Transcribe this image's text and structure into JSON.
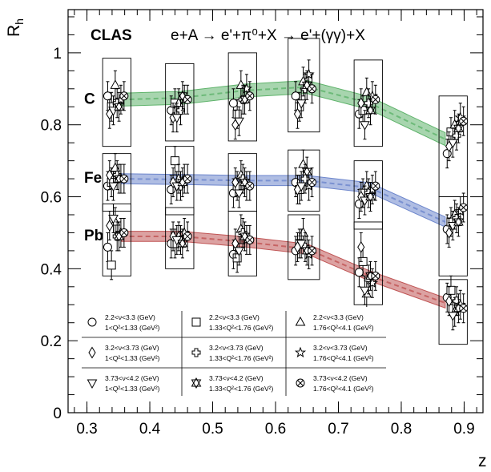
{
  "chart_data": {
    "type": "scatter",
    "title_lead": "CLAS",
    "reaction": "e+A → e'+π⁰+X → e'+(γγ)+X",
    "xlabel": "z",
    "ylabel": "R",
    "ylabel_sub": "h",
    "xlim": [
      0.27,
      0.93
    ],
    "ylim": [
      0.0,
      1.12
    ],
    "xticks": [
      0.3,
      0.4,
      0.5,
      0.6,
      0.7,
      0.8,
      0.9
    ],
    "xtick_labels": [
      "0.3",
      "0.4",
      "0.5",
      "0.6",
      "0.7",
      "0.8",
      "0.9"
    ],
    "yticks": [
      0.2,
      0.4,
      0.6,
      0.8,
      1.0
    ],
    "ytick_labels": [
      "0.2",
      "0.4",
      "0.6",
      "0.8",
      "1"
    ],
    "ytick_zero_label": "0",
    "grid": false,
    "z_bins": [
      {
        "x": 0.345,
        "x0": 0.325,
        "x1": 0.37
      },
      {
        "x": 0.446,
        "x0": 0.425,
        "x1": 0.47
      },
      {
        "x": 0.545,
        "x0": 0.525,
        "x1": 0.57
      },
      {
        "x": 0.644,
        "x0": 0.62,
        "x1": 0.67
      },
      {
        "x": 0.745,
        "x0": 0.725,
        "x1": 0.77
      },
      {
        "x": 0.885,
        "x0": 0.86,
        "x1": 0.905
      }
    ],
    "nuclei": [
      {
        "label": "C",
        "color": "#5fb36b",
        "band": {
          "x": [
            0.355,
            0.45,
            0.55,
            0.65,
            0.75,
            0.87
          ],
          "y": [
            0.87,
            0.875,
            0.895,
            0.905,
            0.86,
            0.76
          ],
          "half_width": 0.018
        },
        "sys_boxes": [
          [
            0.74,
            0.985
          ],
          [
            0.755,
            0.97
          ],
          [
            0.755,
            1.0
          ],
          [
            0.78,
            1.04
          ],
          [
            0.74,
            0.98
          ],
          [
            0.6,
            0.88
          ]
        ]
      },
      {
        "label": "Fe",
        "color": "#6d86cc",
        "band": {
          "x": [
            0.355,
            0.45,
            0.55,
            0.65,
            0.75,
            0.87
          ],
          "y": [
            0.65,
            0.648,
            0.645,
            0.645,
            0.625,
            0.53
          ],
          "half_width": 0.014
        },
        "sys_boxes": [
          [
            0.56,
            0.72
          ],
          [
            0.55,
            0.74
          ],
          [
            0.56,
            0.72
          ],
          [
            0.56,
            0.73
          ],
          [
            0.51,
            0.7
          ],
          [
            0.38,
            0.6
          ]
        ]
      },
      {
        "label": "Pb",
        "color": "#c05555",
        "band": {
          "x": [
            0.355,
            0.45,
            0.55,
            0.65,
            0.75,
            0.87
          ],
          "y": [
            0.49,
            0.49,
            0.475,
            0.455,
            0.38,
            0.305
          ],
          "half_width": 0.014
        },
        "sys_boxes": [
          [
            0.38,
            0.58
          ],
          [
            0.4,
            0.57
          ],
          [
            0.38,
            0.56
          ],
          [
            0.37,
            0.55
          ],
          [
            0.3,
            0.53
          ],
          [
            0.19,
            0.37
          ]
        ]
      }
    ],
    "series": [
      {
        "nu": "2.2<ν<3.3 (GeV)",
        "q2": "1<Q²<1.33 (GeV²)",
        "marker": "circle",
        "dx": -0.012,
        "points": {
          "C": [
            0.88,
            0.84,
            0.86,
            0.88,
            0.83,
            0.72
          ],
          "Fe": [
            0.63,
            0.62,
            0.61,
            0.64,
            0.58,
            0.51
          ],
          "Pb": [
            0.46,
            0.47,
            0.44,
            0.45,
            0.39,
            0.32
          ]
        }
      },
      {
        "nu": "2.2<ν<3.3 (GeV)",
        "q2": "1.33<Q²<1.76 (GeV²)",
        "marker": "square",
        "dx": -0.006,
        "points": {
          "C": [
            0.85,
            0.86,
            0.83,
            0.85,
            0.84,
            0.78
          ],
          "Fe": [
            0.64,
            0.7,
            0.63,
            0.62,
            0.61,
            0.53
          ],
          "Pb": [
            0.41,
            0.47,
            0.43,
            0.47,
            0.42,
            0.34
          ]
        }
      },
      {
        "nu": "2.2<ν<3.3 (GeV)",
        "q2": "1.76<Q²<4.1 (GeV²)",
        "marker": "triangle-up",
        "dx": 0.0,
        "points": {
          "C": [
            0.91,
            0.86,
            0.91,
            0.92,
            0.89,
            0.8
          ],
          "Fe": [
            0.68,
            0.65,
            0.66,
            0.69,
            0.63,
            0.55
          ],
          "Pb": [
            0.53,
            0.49,
            0.51,
            0.5,
            0.33,
            0.28
          ]
        }
      },
      {
        "nu": "3.2<ν<3.73 (GeV)",
        "q2": "1<Q²<1.33 (GeV²)",
        "marker": "diamond",
        "dx": -0.009,
        "points": {
          "C": [
            0.83,
            0.82,
            0.8,
            0.83,
            0.86,
            0.74
          ],
          "Fe": [
            0.66,
            0.64,
            0.64,
            0.62,
            0.6,
            0.5
          ],
          "Pb": [
            0.52,
            0.49,
            0.47,
            0.46,
            0.46,
            0.31
          ]
        }
      },
      {
        "nu": "3.2<ν<3.73 (GeV)",
        "q2": "1.33<Q²<1.76 (GeV²)",
        "marker": "cross",
        "dx": 0.003,
        "points": {
          "C": [
            0.86,
            0.84,
            0.87,
            0.9,
            0.86,
            0.77
          ],
          "Fe": [
            0.66,
            0.63,
            0.65,
            0.65,
            0.61,
            0.54
          ],
          "Pb": [
            0.49,
            0.48,
            0.5,
            0.46,
            0.37,
            0.31
          ]
        }
      },
      {
        "nu": "3.2<ν<3.73 (GeV)",
        "q2": "1.76<Q²<4.1 (GeV²)",
        "marker": "star",
        "dx": 0.009,
        "points": {
          "C": [
            0.87,
            0.87,
            0.9,
            0.94,
            0.88,
            0.82
          ],
          "Fe": [
            0.65,
            0.65,
            0.63,
            0.63,
            0.62,
            0.56
          ],
          "Pb": [
            0.5,
            0.5,
            0.48,
            0.44,
            0.36,
            0.3
          ]
        }
      },
      {
        "nu": "3.73<ν<4.2 (GeV)",
        "q2": "1<Q²<1.33 (GeV²)",
        "marker": "triangle-down",
        "dx": -0.003,
        "points": {
          "C": [
            0.84,
            0.82,
            0.81,
            0.86,
            0.8,
            0.75
          ],
          "Fe": [
            0.63,
            0.63,
            0.61,
            0.63,
            0.59,
            0.52
          ],
          "Pb": [
            0.54,
            0.48,
            0.45,
            0.47,
            0.34,
            0.27
          ]
        }
      },
      {
        "nu": "3.73<ν<4.2 (GeV)",
        "q2": "1.33<Q²<1.76 (GeV²)",
        "marker": "triangle-double",
        "dx": 0.006,
        "points": {
          "C": [
            0.85,
            0.88,
            0.87,
            0.91,
            0.84,
            0.79
          ],
          "Fe": [
            0.65,
            0.64,
            0.64,
            0.67,
            0.6,
            0.53
          ],
          "Pb": [
            0.49,
            0.47,
            0.49,
            0.45,
            0.38,
            0.29
          ]
        }
      },
      {
        "nu": "3.73<ν<4.2 (GeV)",
        "q2": "1.76<Q²<4.1 (GeV²)",
        "marker": "x-circle",
        "dx": 0.014,
        "points": {
          "C": [
            0.88,
            0.87,
            0.88,
            0.9,
            0.87,
            0.81
          ],
          "Fe": [
            0.65,
            0.65,
            0.63,
            0.64,
            0.63,
            0.57
          ],
          "Pb": [
            0.5,
            0.49,
            0.48,
            0.45,
            0.38,
            0.29
          ]
        }
      }
    ],
    "error_bar_halfwidth": 0.04
  }
}
